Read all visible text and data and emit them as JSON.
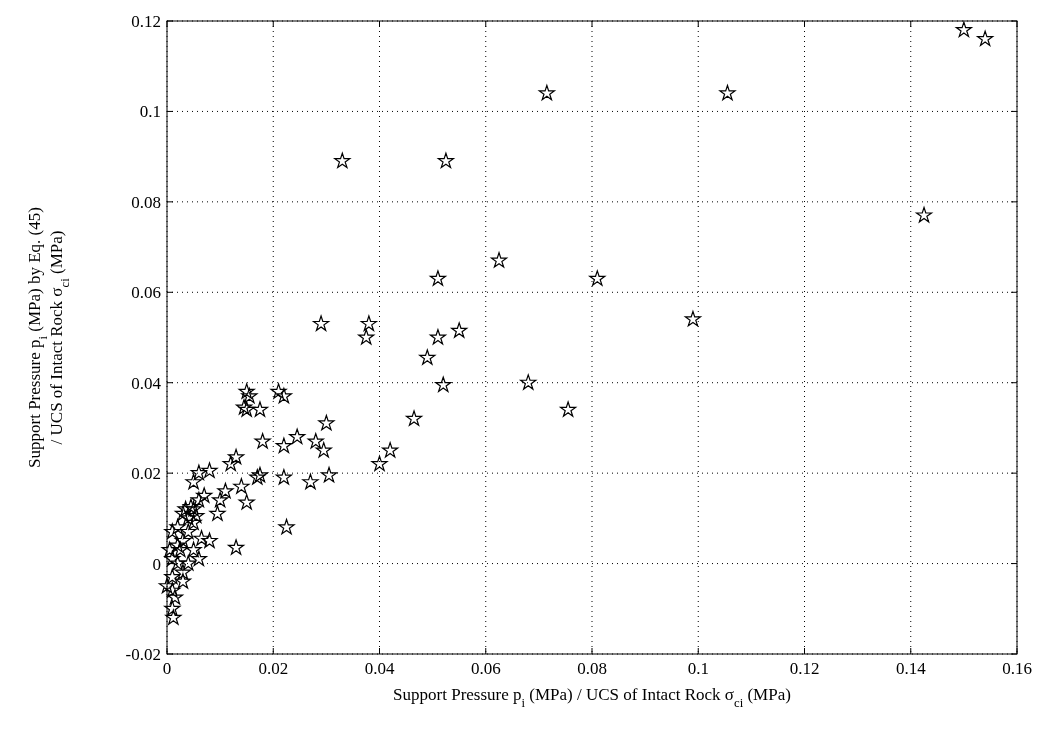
{
  "chart_data": {
    "type": "scatter",
    "xlabel": "Support Pressure p$_{i}$ (MPa) / UCS of Intact Rock σ$_{ci}$ (MPa)",
    "ylabel": "Support Pressure p$_{i}$ (MPa) by Eq. (45)\n/ UCS of Intact Rock σ$_{ci}$ (MPa)",
    "xlim": [
      0,
      0.16
    ],
    "ylim": [
      -0.02,
      0.12
    ],
    "xticks": [
      0,
      0.02,
      0.04,
      0.06,
      0.08,
      0.1,
      0.12,
      0.14,
      0.16
    ],
    "yticks": [
      -0.02,
      0,
      0.02,
      0.04,
      0.06,
      0.08,
      0.1,
      0.12
    ],
    "grid": true,
    "marker": "star",
    "series": [
      {
        "color": "#000000",
        "x": [
          0.15,
          0.154,
          0.1055,
          0.0715,
          0.033,
          0.0525,
          0.1425,
          0.0625,
          0.081,
          0.051,
          0.099,
          0.029,
          0.038,
          0.0375,
          0.055,
          0.051,
          0.049,
          0.052,
          0.068,
          0.0755,
          0.0465,
          0.042,
          0.04,
          0.03,
          0.0295,
          0.0305,
          0.028,
          0.027,
          0.0245,
          0.022,
          0.022,
          0.0225,
          0.021,
          0.022,
          0.015,
          0.0155,
          0.015,
          0.0175,
          0.0145,
          0.018,
          0.017,
          0.0175,
          0.014,
          0.013,
          0.012,
          0.015,
          0.013,
          0.011,
          0.01,
          0.008,
          0.0095,
          0.007,
          0.006,
          0.005,
          0.008,
          0.006,
          0.005,
          0.004,
          0.005,
          0.003,
          0.004,
          0.003,
          0.002,
          0.001,
          0.002,
          0.0025,
          0.005,
          0.006,
          0.004,
          0.003,
          0.001,
          0.0,
          0.001,
          0.0015,
          0.001,
          0.0012,
          0.003,
          0.002,
          0.0065,
          0.0045,
          0.0035,
          0.0055,
          0.001,
          0.0005
        ],
        "values": [
          0.118,
          0.116,
          0.104,
          0.104,
          0.089,
          0.089,
          0.077,
          0.067,
          0.063,
          0.063,
          0.054,
          0.053,
          0.053,
          0.05,
          0.0515,
          0.05,
          0.0455,
          0.0395,
          0.04,
          0.034,
          0.032,
          0.025,
          0.022,
          0.031,
          0.025,
          0.0195,
          0.027,
          0.018,
          0.028,
          0.026,
          0.019,
          0.008,
          0.038,
          0.037,
          0.038,
          0.037,
          0.034,
          0.034,
          0.0345,
          0.027,
          0.019,
          0.0195,
          0.017,
          0.0235,
          0.022,
          0.0135,
          0.0035,
          0.016,
          0.014,
          0.0205,
          0.011,
          0.015,
          0.02,
          0.018,
          0.005,
          0.014,
          0.012,
          0.01,
          0.009,
          0.011,
          0.007,
          0.005,
          0.008,
          0.007,
          0.004,
          0.003,
          0.003,
          0.001,
          0.0,
          -0.002,
          -0.003,
          -0.005,
          -0.006,
          -0.0075,
          -0.01,
          -0.012,
          -0.004,
          0.0,
          0.0055,
          0.0125,
          0.012,
          0.0105,
          0.001,
          0.003
        ]
      }
    ]
  }
}
